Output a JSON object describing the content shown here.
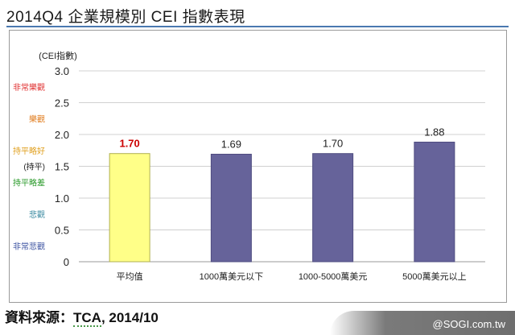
{
  "title": "2014Q4 企業規模別 CEI 指數表現",
  "source": {
    "prefix": "資料來源：",
    "name": "TCA",
    "suffix": ", 2014/10"
  },
  "watermark": "@SOGI.com.tw",
  "colors": {
    "highlight": "#ffff88",
    "bar": "#66639a",
    "highlight_label": "#cc0000",
    "grid": "#d0d0d0"
  },
  "chart_data": {
    "type": "bar",
    "title": "",
    "ylabel": "(CEI指數)",
    "xlabel": "",
    "ylim": [
      0,
      3.0
    ],
    "yticks": [
      "0",
      "0.5",
      "1.0",
      "1.5",
      "2.0",
      "2.5",
      "3.0"
    ],
    "ytick_values": [
      0,
      0.5,
      1.0,
      1.5,
      2.0,
      2.5,
      3.0
    ],
    "categories": [
      "平均值",
      "1000萬美元以下",
      "1000-5000萬美元",
      "5000萬美元以上"
    ],
    "values": [
      1.7,
      1.69,
      1.7,
      1.88
    ],
    "value_labels": [
      "1.70",
      "1.69",
      "1.70",
      "1.88"
    ],
    "highlight_index": 0,
    "sentiment_labels": [
      {
        "text": "非常樂觀",
        "value": 2.75,
        "color": "#e03030"
      },
      {
        "text": "樂觀",
        "value": 2.25,
        "color": "#e07a1a"
      },
      {
        "text": "持平略好",
        "value": 1.75,
        "color": "#e0a020"
      },
      {
        "text": "(持平)",
        "value": 1.5,
        "color": "#222222"
      },
      {
        "text": "持平略差",
        "value": 1.25,
        "color": "#2a9a2a"
      },
      {
        "text": "悲觀",
        "value": 0.75,
        "color": "#3a8aa0"
      },
      {
        "text": "非常悲觀",
        "value": 0.25,
        "color": "#3a50a0"
      }
    ]
  }
}
